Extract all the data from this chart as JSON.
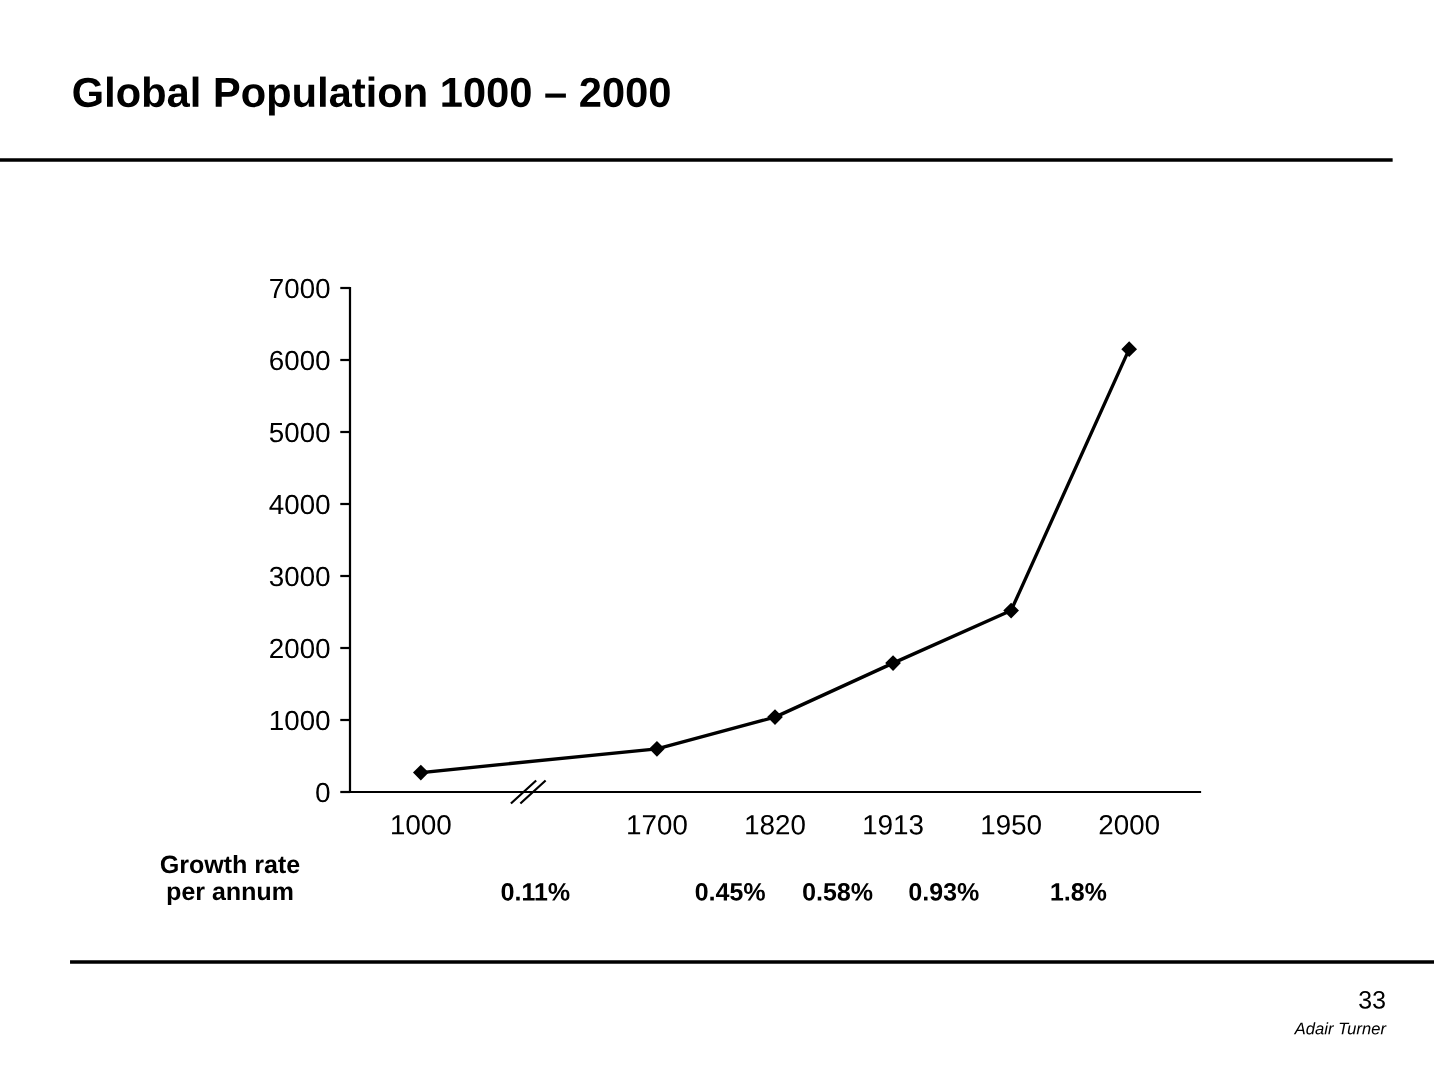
{
  "chart_data": {
    "type": "line",
    "title": "Global Population 1000 – 2000",
    "categories": [
      "1000",
      null,
      "1700",
      "1820",
      "1913",
      "1950",
      "2000"
    ],
    "series": [
      {
        "color": "#000000",
        "values": [
          270,
          null,
          600,
          1040,
          1790,
          2520,
          6150
        ]
      }
    ],
    "ylim": [
      0,
      7000
    ],
    "yticks": [
      0,
      1000,
      2000,
      3000,
      4000,
      5000,
      6000,
      7000
    ],
    "marker": "diamond",
    "line_style": "solid",
    "grid": false,
    "legend": false,
    "annotations": [
      "Growth rate\nper annum",
      "0.11%",
      "0.45%",
      "0.58%",
      "0.93%",
      "1.8%",
      "33",
      "Adair Turner"
    ]
  }
}
